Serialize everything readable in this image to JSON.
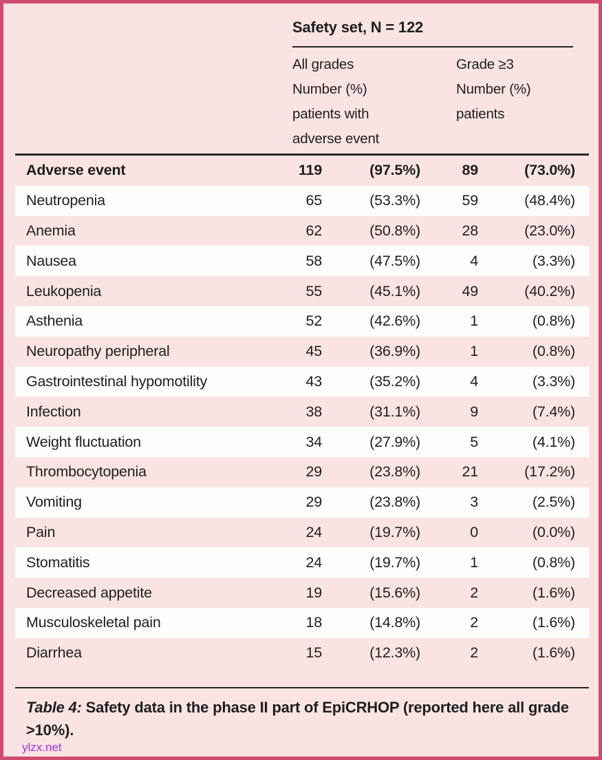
{
  "table": {
    "title": "Safety set, N = 122",
    "column_headers": {
      "all_grades": "All grades\nNumber (%)\npatients with\nadverse event",
      "grade_3plus": "Grade ≥3\nNumber (%)\npatients"
    },
    "header_row": {
      "event": "Adverse event",
      "n_all": "119",
      "pct_all": "(97.5%)",
      "n_g3": "89",
      "pct_g3": "(73.0%)"
    },
    "rows": [
      {
        "event": "Neutropenia",
        "n_all": "65",
        "pct_all": "(53.3%)",
        "n_g3": "59",
        "pct_g3": "(48.4%)"
      },
      {
        "event": "Anemia",
        "n_all": "62",
        "pct_all": "(50.8%)",
        "n_g3": "28",
        "pct_g3": "(23.0%)"
      },
      {
        "event": "Nausea",
        "n_all": "58",
        "pct_all": "(47.5%)",
        "n_g3": "4",
        "pct_g3": "(3.3%)"
      },
      {
        "event": "Leukopenia",
        "n_all": "55",
        "pct_all": "(45.1%)",
        "n_g3": "49",
        "pct_g3": "(40.2%)"
      },
      {
        "event": "Asthenia",
        "n_all": "52",
        "pct_all": "(42.6%)",
        "n_g3": "1",
        "pct_g3": "(0.8%)"
      },
      {
        "event": "Neuropathy peripheral",
        "n_all": "45",
        "pct_all": "(36.9%)",
        "n_g3": "1",
        "pct_g3": "(0.8%)"
      },
      {
        "event": "Gastrointestinal hypomotility",
        "n_all": "43",
        "pct_all": "(35.2%)",
        "n_g3": "4",
        "pct_g3": "(3.3%)"
      },
      {
        "event": "Infection",
        "n_all": "38",
        "pct_all": "(31.1%)",
        "n_g3": "9",
        "pct_g3": "(7.4%)"
      },
      {
        "event": "Weight fluctuation",
        "n_all": "34",
        "pct_all": "(27.9%)",
        "n_g3": "5",
        "pct_g3": "(4.1%)"
      },
      {
        "event": "Thrombocytopenia",
        "n_all": "29",
        "pct_all": "(23.8%)",
        "n_g3": "21",
        "pct_g3": "(17.2%)"
      },
      {
        "event": "Vomiting",
        "n_all": "29",
        "pct_all": "(23.8%)",
        "n_g3": "3",
        "pct_g3": "(2.5%)"
      },
      {
        "event": "Pain",
        "n_all": "24",
        "pct_all": "(19.7%)",
        "n_g3": "0",
        "pct_g3": "(0.0%)"
      },
      {
        "event": "Stomatitis",
        "n_all": "24",
        "pct_all": "(19.7%)",
        "n_g3": "1",
        "pct_g3": "(0.8%)"
      },
      {
        "event": "Decreased appetite",
        "n_all": "19",
        "pct_all": "(15.6%)",
        "n_g3": "2",
        "pct_g3": "(1.6%)"
      },
      {
        "event": "Musculoskeletal pain",
        "n_all": "18",
        "pct_all": "(14.8%)",
        "n_g3": "2",
        "pct_g3": "(1.6%)"
      },
      {
        "event": "Diarrhea",
        "n_all": "15",
        "pct_all": "(12.3%)",
        "n_g3": "2",
        "pct_g3": "(1.6%)"
      }
    ]
  },
  "caption": {
    "prefix": "Table 4:",
    "rest": " Safety data in the phase II part of EpiCRHOP (reported here all grade >10%)."
  },
  "watermark": "ylzx.net",
  "colors": {
    "border": "#cf4a6e",
    "background_pink": "#f9e4e3",
    "row_white": "#fdfdfd",
    "rule": "#262626",
    "text": "#1f1f1f",
    "watermark": "#a332d6"
  }
}
